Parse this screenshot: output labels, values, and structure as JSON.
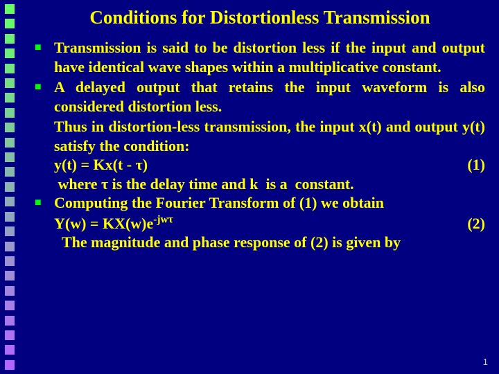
{
  "strip": {
    "squares": 25,
    "top_color": "#66ff66",
    "bottom_color": "#b366ff"
  },
  "title": "Conditions for Distortionless Transmission",
  "bullets": [
    {
      "text": "Transmission is said to be distortion less if the input and output have identical wave shapes within a multiplicative constant."
    },
    {
      "text": "A delayed output that retains the input waveform is also considered distortion less.",
      "cont": [
        {
          "plain": "Thus in distortion-less transmission, the input x(t) and output y(t) satisfy the condition:"
        },
        {
          "eq_lhs": "y(t) = Kx(t - τ)",
          "eq_rhs": "(1)"
        },
        {
          "indent_small": " where τ is the delay time and k  is a  constant."
        }
      ]
    },
    {
      "text": "Computing the Fourier Transform of (1) we obtain",
      "cont": [
        {
          "eq_lhs_html": "Y(w) = KX(w)e<span class=\"sup\">-jwτ</span>",
          "eq_rhs": "(2)"
        },
        {
          "indent_small": "  The magnitude and phase response of (2) is given by"
        }
      ]
    }
  ],
  "pagenum": "1",
  "colors": {
    "bg": "#000080",
    "text": "#ffff00",
    "bullet": "#00ff00"
  }
}
